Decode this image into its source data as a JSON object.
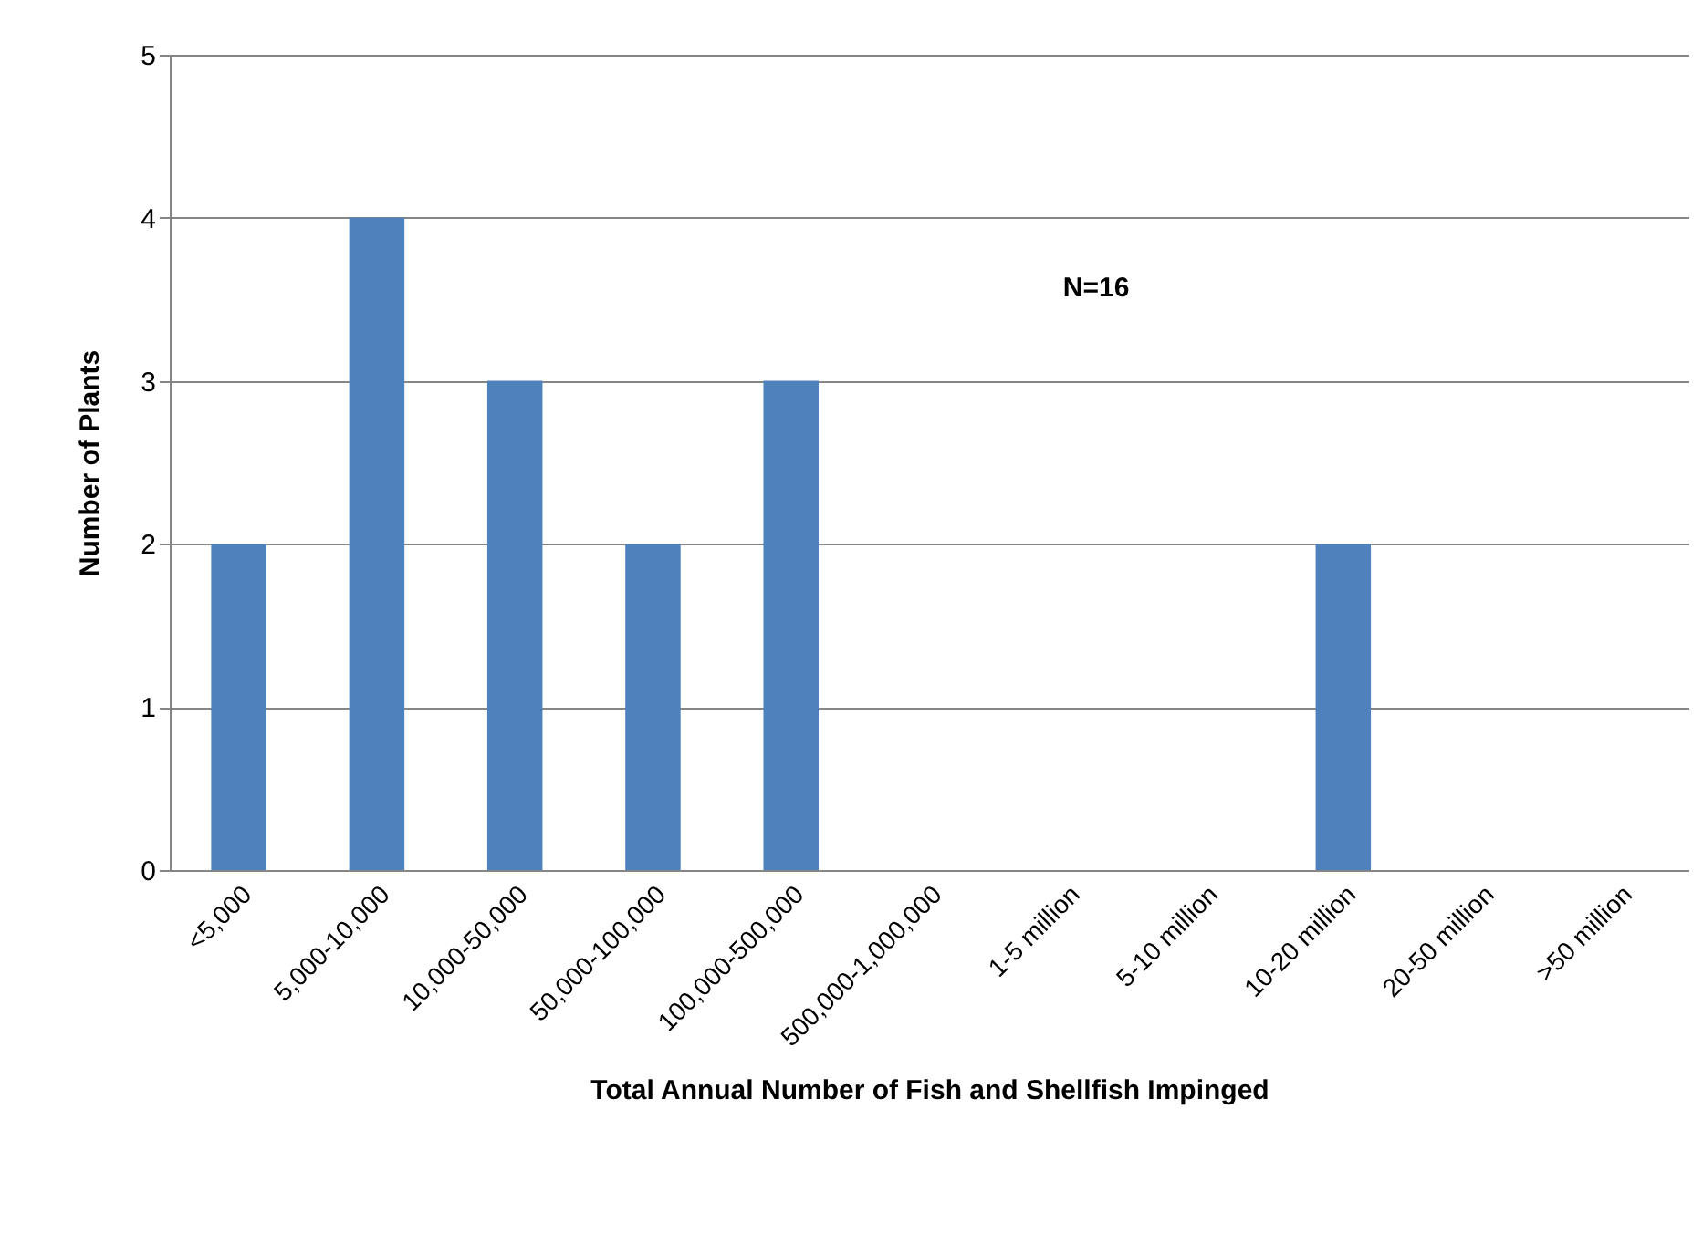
{
  "chart_data": {
    "type": "bar",
    "xlabel": "Total Annual Number of Fish and Shellfish Impinged",
    "ylabel": "Number of Plants",
    "categories": [
      "<5,000",
      "5,000-10,000",
      "10,000-50,000",
      "50,000-100,000",
      "100,000-500,000",
      "500,000-1,000,000",
      "1-5 million",
      "5-10 million",
      "10-20 million",
      "20-50 million",
      ">50 million"
    ],
    "values": [
      2,
      4,
      3,
      2,
      3,
      0,
      0,
      0,
      2,
      0,
      0
    ],
    "color": "#4f81bd",
    "ylim": [
      0,
      5
    ],
    "yticks": [
      0,
      1,
      2,
      3,
      4,
      5
    ],
    "grid": "y",
    "annotations": [
      "N=16"
    ]
  }
}
